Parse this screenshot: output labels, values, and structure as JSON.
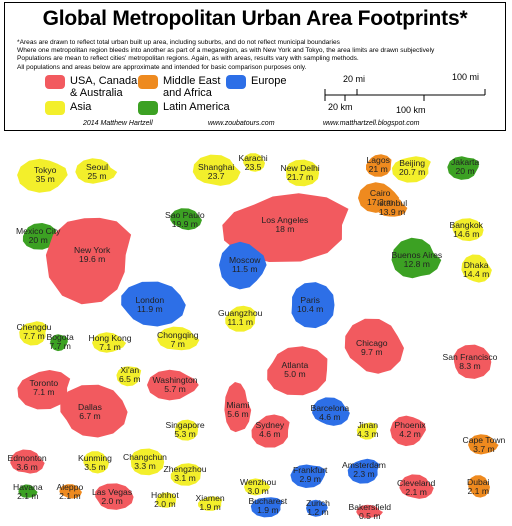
{
  "header": {
    "title": "Global Metropolitan Urban Area Footprints*",
    "notes": [
      "*Areas are drawn to reflect total urban built up area, including suburbs, and do not reflect municipal boundaries",
      "Where one metropolitan region bleeds into another as part of a megaregion, as with New York and Tokyo, the area limits are drawn subjectively",
      "Populations are mean to reflect cities' metropolitan regions. Again, as with areas, results vary with sampling methods.",
      "All populations and areas below are approximate and intended for basic comparison purposes only."
    ],
    "credit_author": "2014 Matthew Hartzell",
    "credit_site1": "www.zoubatours.com",
    "credit_site2": "www.matthartzell.blogspot.com"
  },
  "legend": [
    {
      "label": "USA, Canada,\n& Australia",
      "color": "#f25a5f"
    },
    {
      "label": "Middle East\nand Africa",
      "color": "#ee8a1f"
    },
    {
      "label": "Europe",
      "color": "#2d6fe7"
    },
    {
      "label": "Asia",
      "color": "#f3ef2b"
    },
    {
      "label": "Latin America",
      "color": "#3ca123"
    }
  ],
  "scale": {
    "mi_labels": [
      "20 mi",
      "100 mi"
    ],
    "km_labels": [
      "20 km",
      "100 km"
    ]
  },
  "cities": [
    {
      "name": "Tokyo",
      "pop": "35 m",
      "color": "#f3ef2b"
    },
    {
      "name": "Seoul",
      "pop": "25 m",
      "color": "#f3ef2b"
    },
    {
      "name": "Shanghai",
      "pop": "23.7",
      "color": "#f3ef2b"
    },
    {
      "name": "Karachi",
      "pop": "23.5",
      "color": "#f3ef2b"
    },
    {
      "name": "New Delhi",
      "pop": "21.7 m",
      "color": "#f3ef2b"
    },
    {
      "name": "Lagos",
      "pop": "21 m",
      "color": "#ee8a1f"
    },
    {
      "name": "Beijing",
      "pop": "20.7 m",
      "color": "#f3ef2b"
    },
    {
      "name": "Jakarta",
      "pop": "20 m",
      "color": "#3ca123"
    },
    {
      "name": "Cairo",
      "pop": "17.3 m",
      "color": "#ee8a1f"
    },
    {
      "name": "Istanbul",
      "pop": "13.9 m",
      "color": "#ee8a1f"
    },
    {
      "name": "Sao Paulo",
      "pop": "19.9 m",
      "color": "#3ca123"
    },
    {
      "name": "Bangkok",
      "pop": "14.6 m",
      "color": "#f3ef2b"
    },
    {
      "name": "Mexico City",
      "pop": "20 m",
      "color": "#3ca123"
    },
    {
      "name": "Los Angeles",
      "pop": "18 m",
      "color": "#f25a5f"
    },
    {
      "name": "New York",
      "pop": "19.6 m",
      "color": "#f25a5f"
    },
    {
      "name": "Moscow",
      "pop": "11.5 m",
      "color": "#2d6fe7"
    },
    {
      "name": "Buenos Aires",
      "pop": "12.8 m",
      "color": "#3ca123"
    },
    {
      "name": "Dhaka",
      "pop": "14.4 m",
      "color": "#f3ef2b"
    },
    {
      "name": "London",
      "pop": "11.9 m",
      "color": "#2d6fe7"
    },
    {
      "name": "Paris",
      "pop": "10.4 m",
      "color": "#2d6fe7"
    },
    {
      "name": "Guangzhou",
      "pop": "11.1 m",
      "color": "#f3ef2b"
    },
    {
      "name": "Chengdu",
      "pop": "7.7 m",
      "color": "#f3ef2b"
    },
    {
      "name": "Bogota",
      "pop": "7.7 m",
      "color": "#3ca123"
    },
    {
      "name": "Hong Kong",
      "pop": "7.1 m",
      "color": "#f3ef2b"
    },
    {
      "name": "Chongqing",
      "pop": "7 m",
      "color": "#f3ef2b"
    },
    {
      "name": "Chicago",
      "pop": "9.7 m",
      "color": "#f25a5f"
    },
    {
      "name": "San Francisco",
      "pop": "8.3 m",
      "color": "#f25a5f"
    },
    {
      "name": "Atlanta",
      "pop": "5.0 m",
      "color": "#f25a5f"
    },
    {
      "name": "Toronto",
      "pop": "7.1 m",
      "color": "#f25a5f"
    },
    {
      "name": "Xi'an",
      "pop": "6.5 m",
      "color": "#f3ef2b"
    },
    {
      "name": "Washington",
      "pop": "5.7 m",
      "color": "#f25a5f"
    },
    {
      "name": "Miami",
      "pop": "5.6 m",
      "color": "#f25a5f"
    },
    {
      "name": "Barcelona",
      "pop": "4.6 m",
      "color": "#2d6fe7"
    },
    {
      "name": "Dallas",
      "pop": "6.7 m",
      "color": "#f25a5f"
    },
    {
      "name": "Singapore",
      "pop": "5.3 m",
      "color": "#f3ef2b"
    },
    {
      "name": "Sydney",
      "pop": "4.6 m",
      "color": "#f25a5f"
    },
    {
      "name": "Jinan",
      "pop": "4.3 m",
      "color": "#f3ef2b"
    },
    {
      "name": "Phoenix",
      "pop": "4.2 m",
      "color": "#f25a5f"
    },
    {
      "name": "Cape Town",
      "pop": "3.7 m",
      "color": "#ee8a1f"
    },
    {
      "name": "Edmonton",
      "pop": "3.6 m",
      "color": "#f25a5f"
    },
    {
      "name": "Kunming",
      "pop": "3.5 m",
      "color": "#f3ef2b"
    },
    {
      "name": "Changchun",
      "pop": "3.3 m",
      "color": "#f3ef2b"
    },
    {
      "name": "Zhengzhou",
      "pop": "3.1 m",
      "color": "#f3ef2b"
    },
    {
      "name": "Amsterdam",
      "pop": "2.3 m",
      "color": "#2d6fe7"
    },
    {
      "name": "Frankfurt",
      "pop": "2.9 m",
      "color": "#2d6fe7"
    },
    {
      "name": "Wenzhou",
      "pop": "3.0 m",
      "color": "#f3ef2b"
    },
    {
      "name": "Havana",
      "pop": "2.1 m",
      "color": "#3ca123"
    },
    {
      "name": "Aleppo",
      "pop": "2.1 m",
      "color": "#ee8a1f"
    },
    {
      "name": "Las Vegas",
      "pop": "2.0 m",
      "color": "#f25a5f"
    },
    {
      "name": "Hohhot",
      "pop": "2.0 m",
      "color": "#f3ef2b"
    },
    {
      "name": "Xiamen",
      "pop": "1.9 m",
      "color": "#f3ef2b"
    },
    {
      "name": "Bucharest",
      "pop": "1.9 m",
      "color": "#2d6fe7"
    },
    {
      "name": "Zurich",
      "pop": "1.2 m",
      "color": "#2d6fe7"
    },
    {
      "name": "Bakersfield",
      "pop": "0.5 m",
      "color": "#f25a5f"
    },
    {
      "name": "Cleveland",
      "pop": "2.1 m",
      "color": "#f25a5f"
    },
    {
      "name": "Dubai",
      "pop": "2.1 m",
      "color": "#ee8a1f"
    }
  ]
}
